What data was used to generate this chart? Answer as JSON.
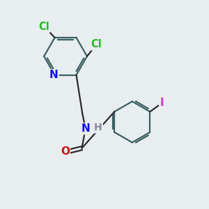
{
  "background_color": "#e8edf0",
  "bond_color": "#2a2a2a",
  "atom_colors": {
    "N": "#1010dd",
    "O": "#cc1010",
    "Cl": "#22bb22",
    "I": "#cc33cc",
    "C": "#2a2a2a",
    "H": "#888899"
  },
  "line_width": 1.6,
  "font_size": 10.5,
  "ring_bond_color": "#3a6060"
}
